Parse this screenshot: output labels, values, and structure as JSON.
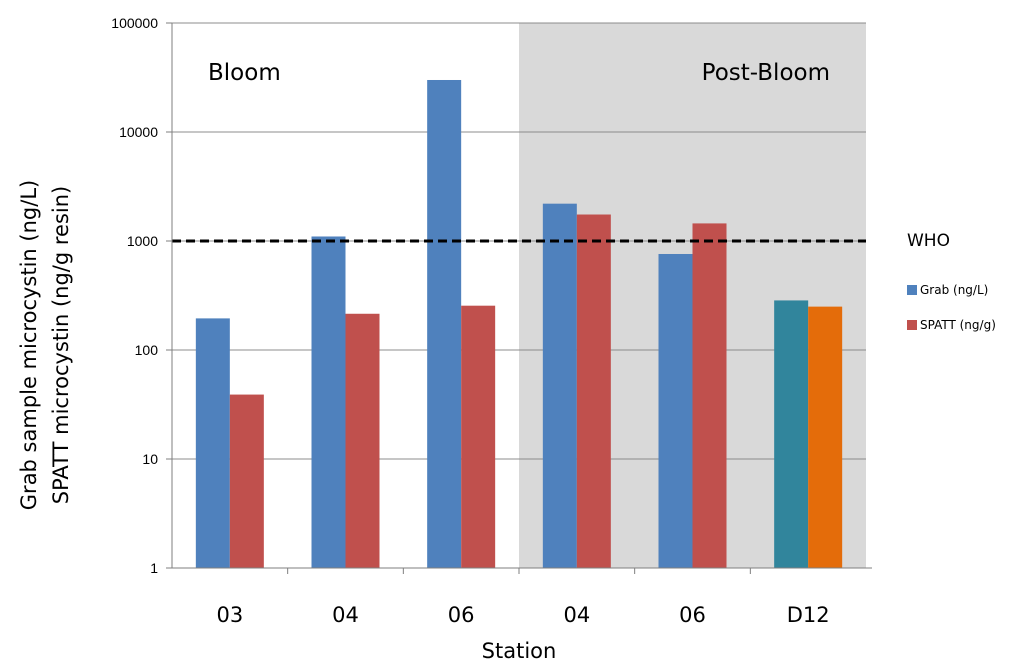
{
  "chart_data": {
    "type": "bar",
    "yscale": "log",
    "ylim": [
      1,
      100000
    ],
    "yticks": [
      "1",
      "10",
      "100",
      "1000",
      "10000",
      "100000"
    ],
    "xlabel": "Station",
    "ylabel_lines": [
      "Grab sample microcystin (ng/L)",
      "SPATT microcystin (ng/g resin)"
    ],
    "categories": [
      "03",
      "04",
      "06",
      "04",
      "06",
      "D12"
    ],
    "periods": [
      {
        "label": "Bloom",
        "shaded": false,
        "from": 0,
        "to": 2
      },
      {
        "label": "Post-Bloom",
        "shaded": true,
        "from": 3,
        "to": 5
      }
    ],
    "series": [
      {
        "name": "Grab (ng/L)",
        "color": "#4f81bd",
        "values": [
          195,
          1100,
          30000,
          2200,
          760,
          285
        ]
      },
      {
        "name": "SPATT (ng/g)",
        "color": "#c0504d",
        "values": [
          39,
          215,
          255,
          1750,
          1450,
          250
        ]
      }
    ],
    "highlight_colors": {
      "index": 5,
      "colors": [
        "#31859c",
        "#e46c0a"
      ]
    },
    "reference_line": {
      "label": "WHO",
      "value": 1000,
      "style": "dashed"
    },
    "grid": true,
    "legend": "right",
    "shade_color": "#d9d9d9"
  }
}
